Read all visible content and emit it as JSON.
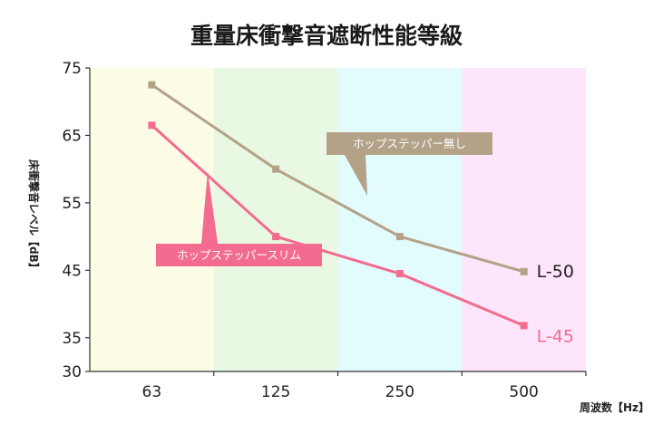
{
  "chart_data": {
    "type": "line",
    "title": "重量床衝撃音遮断性能等級",
    "ylabel": "床衝撃音レベル【dB】",
    "xlabel": "周波数【Hz】",
    "categories": [
      "63",
      "125",
      "250",
      "500"
    ],
    "ylim": [
      30,
      75
    ],
    "yticks": [
      30,
      35,
      45,
      55,
      65,
      75
    ],
    "grid": false,
    "band_colors": [
      "#fcfbe6",
      "#e8f8e2",
      "#e2fbfd",
      "#fde5fb"
    ],
    "series": [
      {
        "name": "ホップステッパー無し",
        "values": [
          72.5,
          60,
          50,
          44.8
        ],
        "end_label": "L-50",
        "color": "#b3a287",
        "label_color": "#222222"
      },
      {
        "name": "ホップステッパースリム",
        "values": [
          66.5,
          50,
          44.5,
          36.8
        ],
        "end_label": "L-45",
        "color": "#f36b8f",
        "label_color": "#f36b8f"
      }
    ]
  }
}
